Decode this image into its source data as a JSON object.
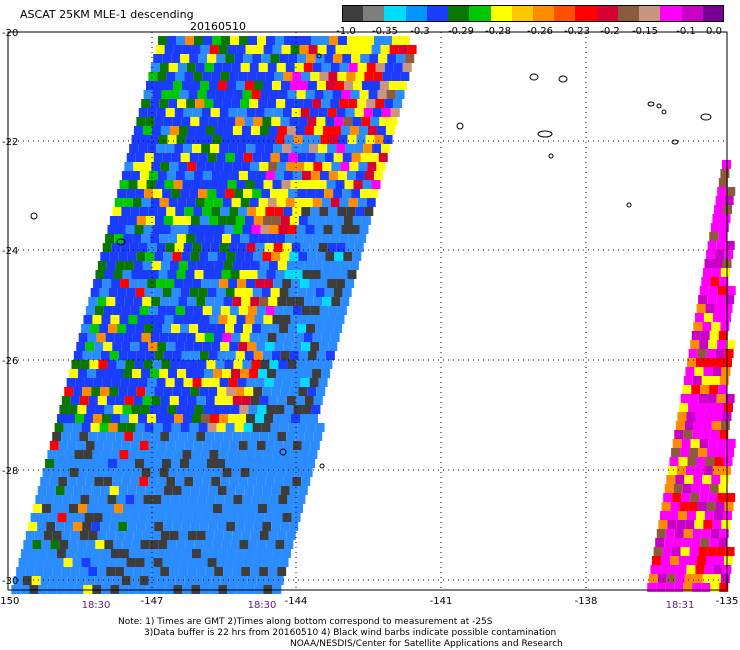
{
  "header": {
    "title": "ASCAT 25KM MLE-1 descending",
    "date": "20160510"
  },
  "colorbar": {
    "colors": [
      "#3d3d3d",
      "#7e7e7e",
      "#00dcff",
      "#0096ff",
      "#1a3cff",
      "#0a7800",
      "#00c800",
      "#ffff00",
      "#ffc800",
      "#ff8c00",
      "#ff5000",
      "#ff0000",
      "#d70032",
      "#8c5a3c",
      "#c89682",
      "#ff00ff",
      "#c800c8",
      "#780096"
    ],
    "labels": [
      "-1.0",
      "-0.35",
      "-0.3",
      "-0.29",
      "-0.28",
      "-0.26",
      "-0.23",
      "-0.2",
      "-0.15",
      "-0.1",
      "0.0"
    ]
  },
  "axes": {
    "y_labels": [
      "-20",
      "-22",
      "-24",
      "-26",
      "-28",
      "-30"
    ],
    "x_labels": [
      "-150",
      "-147",
      "-144",
      "-141",
      "-138",
      "-135"
    ]
  },
  "times": [
    "18:30",
    "18:30",
    "18:31"
  ],
  "notes": [
    "Note: 1) Times are GMT 2)Times along bottom correspond to measurement at -25S",
    "3)Data buffer is 22 hrs from 20160510 4) Black wind barbs indicate possible contamination",
    "NOAA/NESDIS/Center for Satellite Applications and Research"
  ]
}
